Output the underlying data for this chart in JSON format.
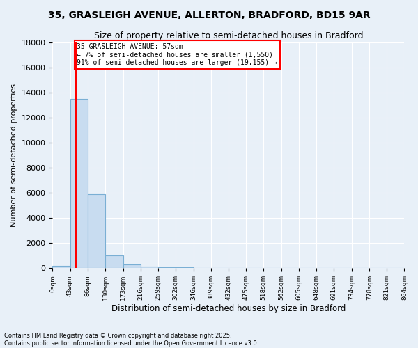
{
  "title": "35, GRASLEIGH AVENUE, ALLERTON, BRADFORD, BD15 9AR",
  "subtitle": "Size of property relative to semi-detached houses in Bradford",
  "xlabel": "Distribution of semi-detached houses by size in Bradford",
  "ylabel": "Number of semi-detached properties",
  "footnote1": "Contains HM Land Registry data © Crown copyright and database right 2025.",
  "footnote2": "Contains public sector information licensed under the Open Government Licence v3.0.",
  "property_size": 57,
  "pct_smaller": 7,
  "pct_larger": 91,
  "n_smaller": 1550,
  "n_larger": 19155,
  "bar_color": "#c8dcf0",
  "bar_edgecolor": "#7aafd4",
  "line_color": "red",
  "background_color": "#e8f0f8",
  "grid_color": "white",
  "ylim": [
    0,
    18000
  ],
  "yticks": [
    0,
    2000,
    4000,
    6000,
    8000,
    10000,
    12000,
    14000,
    16000,
    18000
  ],
  "bin_edges": [
    0,
    43,
    86,
    130,
    173,
    216,
    259,
    302,
    346,
    389,
    432,
    475,
    518,
    562,
    605,
    648,
    691,
    734,
    778,
    821,
    864
  ],
  "bar_heights": [
    200,
    13500,
    5900,
    1000,
    300,
    150,
    100,
    50,
    10,
    5,
    3,
    2,
    1,
    0,
    0,
    0,
    0,
    0,
    0,
    0
  ]
}
